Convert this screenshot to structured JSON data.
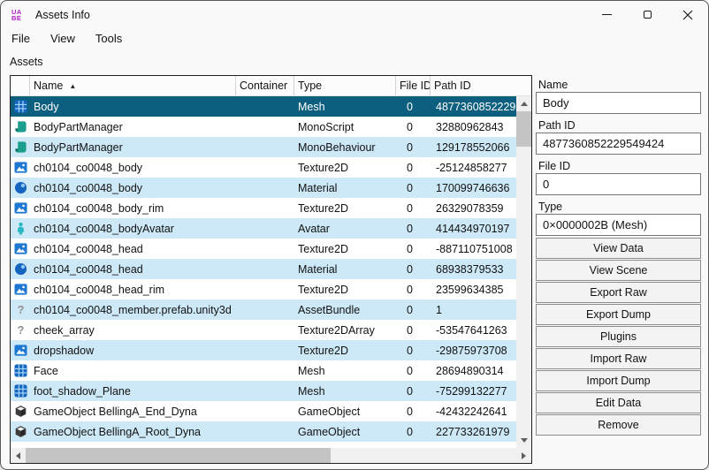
{
  "window": {
    "title": "Assets Info",
    "app_icon_lines": [
      "UA",
      "BE"
    ]
  },
  "menu": {
    "items": [
      "File",
      "View",
      "Tools"
    ]
  },
  "assets_label": "Assets",
  "table": {
    "columns": [
      "",
      "Name",
      "Container",
      "Type",
      "File ID",
      "Path ID"
    ],
    "sort_indicator": "▲",
    "sort": {
      "column": "Name",
      "direction": "ascending"
    },
    "rows": [
      {
        "icon": "mesh-icon",
        "name": "Body",
        "container": "",
        "type": "Mesh",
        "file_id": "0",
        "path_id": "4877360852229549424",
        "selected": true
      },
      {
        "icon": "monoscript-icon",
        "name": "BodyPartManager",
        "container": "",
        "type": "MonoScript",
        "file_id": "0",
        "path_id": "32880962843"
      },
      {
        "icon": "monobehaviour-icon",
        "name": "BodyPartManager",
        "container": "",
        "type": "MonoBehaviour",
        "file_id": "0",
        "path_id": "129178552066"
      },
      {
        "icon": "texture2d-icon",
        "name": "ch0104_co0048_body",
        "container": "",
        "type": "Texture2D",
        "file_id": "0",
        "path_id": "-25124858277"
      },
      {
        "icon": "material-icon",
        "name": "ch0104_co0048_body",
        "container": "",
        "type": "Material",
        "file_id": "0",
        "path_id": "170099746636"
      },
      {
        "icon": "texture2d-icon",
        "name": "ch0104_co0048_body_rim",
        "container": "",
        "type": "Texture2D",
        "file_id": "0",
        "path_id": "26329078359"
      },
      {
        "icon": "avatar-icon",
        "name": "ch0104_co0048_bodyAvatar",
        "container": "",
        "type": "Avatar",
        "file_id": "0",
        "path_id": "414434970197"
      },
      {
        "icon": "texture2d-icon",
        "name": "ch0104_co0048_head",
        "container": "",
        "type": "Texture2D",
        "file_id": "0",
        "path_id": "-887110751008"
      },
      {
        "icon": "material-icon",
        "name": "ch0104_co0048_head",
        "container": "",
        "type": "Material",
        "file_id": "0",
        "path_id": "68938379533"
      },
      {
        "icon": "texture2d-icon",
        "name": "ch0104_co0048_head_rim",
        "container": "",
        "type": "Texture2D",
        "file_id": "0",
        "path_id": "23599634385"
      },
      {
        "icon": "question-icon",
        "name": "ch0104_co0048_member.prefab.unity3d",
        "container": "",
        "type": "AssetBundle",
        "file_id": "0",
        "path_id": "1"
      },
      {
        "icon": "question-icon",
        "name": "cheek_array",
        "container": "",
        "type": "Texture2DArray",
        "file_id": "0",
        "path_id": "-53547641263"
      },
      {
        "icon": "texture2d-icon",
        "name": "dropshadow",
        "container": "",
        "type": "Texture2D",
        "file_id": "0",
        "path_id": "-29875973708"
      },
      {
        "icon": "mesh-icon",
        "name": "Face",
        "container": "",
        "type": "Mesh",
        "file_id": "0",
        "path_id": "28694890314"
      },
      {
        "icon": "mesh-icon",
        "name": "foot_shadow_Plane",
        "container": "",
        "type": "Mesh",
        "file_id": "0",
        "path_id": "-75299132277"
      },
      {
        "icon": "gameobject-icon",
        "name": "GameObject BellingA_End_Dyna",
        "container": "",
        "type": "GameObject",
        "file_id": "0",
        "path_id": "-42432242641"
      },
      {
        "icon": "gameobject-icon",
        "name": "GameObject BellingA_Root_Dyna",
        "container": "",
        "type": "GameObject",
        "file_id": "0",
        "path_id": "227733261979"
      }
    ]
  },
  "details": {
    "name": {
      "label": "Name",
      "value": "Body"
    },
    "path_id": {
      "label": "Path ID",
      "value": "4877360852229549424"
    },
    "file_id": {
      "label": "File ID",
      "value": "0"
    },
    "type": {
      "label": "Type",
      "value": "0×0000002B (Mesh)"
    },
    "buttons": [
      "View Data",
      "View Scene",
      "Export Raw",
      "Export Dump",
      "Plugins",
      "Import Raw",
      "Import Dump",
      "Edit Data",
      "Remove"
    ]
  },
  "colors": {
    "selection_bg": "#0D5F80",
    "alt_row_bg": "#CDE8F6",
    "app_icon_accent": "#AE1FC4",
    "mesh_icon_blue": "#1466C0",
    "script_icon_teal": "#1C9E8F"
  }
}
